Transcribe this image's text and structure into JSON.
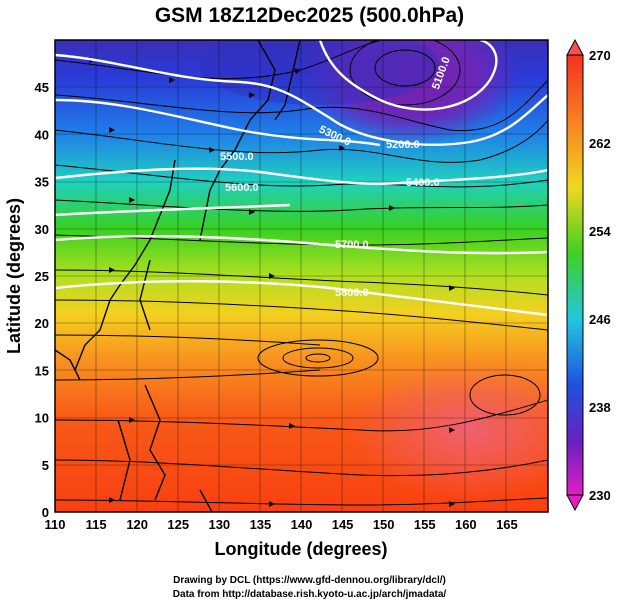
{
  "title": "GSM 18Z12Dec2025 (500.0hPa)",
  "axes": {
    "xlabel": "Longitude (degrees)",
    "ylabel": "Latitude (degrees)",
    "xticks": [
      "110",
      "115",
      "120",
      "125",
      "130",
      "135",
      "140",
      "145",
      "150",
      "155",
      "160",
      "165"
    ],
    "yticks": [
      "0",
      "5",
      "10",
      "15",
      "20",
      "25",
      "30",
      "35",
      "40",
      "45"
    ],
    "xlim": [
      110,
      170
    ],
    "ylim": [
      0,
      50
    ]
  },
  "colorbar": {
    "labels": [
      "270",
      "262",
      "254",
      "246",
      "238",
      "230"
    ],
    "range": [
      230,
      270
    ]
  },
  "contour_labels": [
    "5100.0",
    "5200.0",
    "5300.0",
    "5400.0",
    "5500.0",
    "5600.0",
    "5700.0",
    "5800.0"
  ],
  "credits": [
    "Drawing by DCL (https://www.gfd-dennou.org/library/dcl/)",
    "Data from http://database.rish.kyoto-u.ac.jp/arch/jmadata/"
  ],
  "colors": {
    "cold": "#8a2bb0",
    "mid": "#23d4a0",
    "warm": "#f84010",
    "contour": "#ffffff"
  }
}
